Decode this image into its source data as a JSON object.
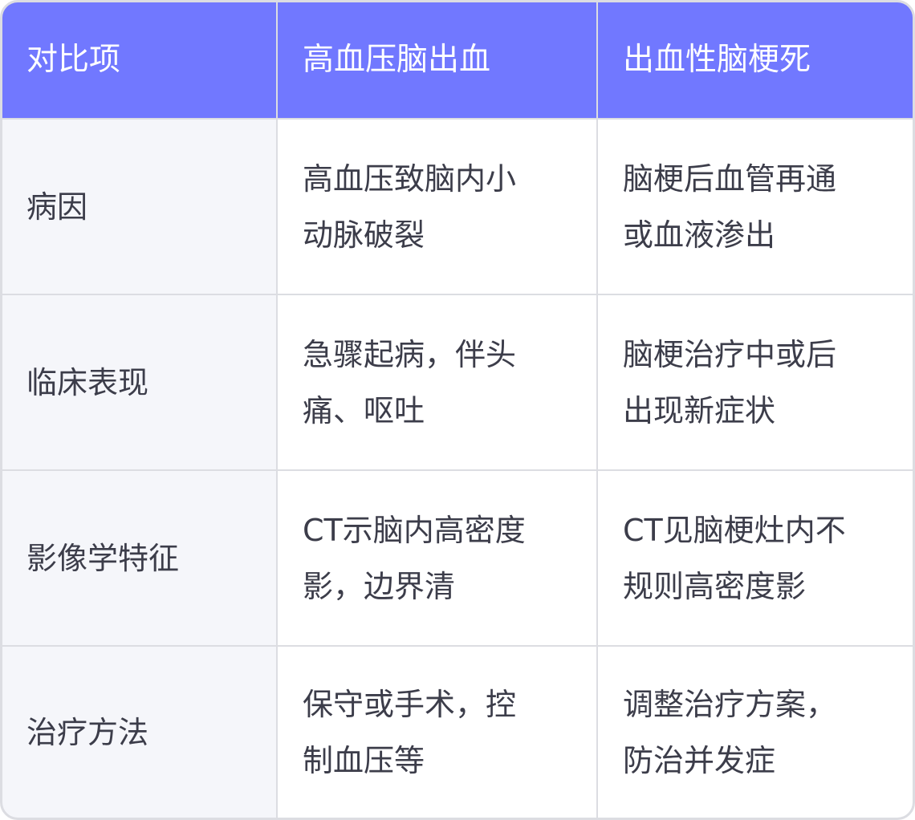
{
  "colors": {
    "header_bg": "#7178ff",
    "first_col_bg": "#f5f6fa",
    "border": "#dcdde2",
    "text": "#3c3d4a"
  },
  "header": [
    "对比项",
    "高血压脑出血",
    "出血性脑梗死"
  ],
  "rows": [
    {
      "label": "病因",
      "col1": [
        "高血压致脑内小",
        "动脉破裂"
      ],
      "col2": [
        "脑梗后血管再通",
        "或血液渗出"
      ]
    },
    {
      "label": "临床表现",
      "col1": [
        "急骤起病，伴头",
        "痛、呕吐"
      ],
      "col2": [
        "脑梗治疗中或后",
        "出现新症状"
      ]
    },
    {
      "label": "影像学特征",
      "col1": [
        "CT示脑内高密度",
        "影，边界清"
      ],
      "col2": [
        "CT见脑梗灶内不",
        "规则高密度影"
      ]
    },
    {
      "label": "治疗方法",
      "col1": [
        "保守或手术，控",
        "制血压等"
      ],
      "col2": [
        "调整治疗方案，",
        "防治并发症"
      ]
    }
  ]
}
